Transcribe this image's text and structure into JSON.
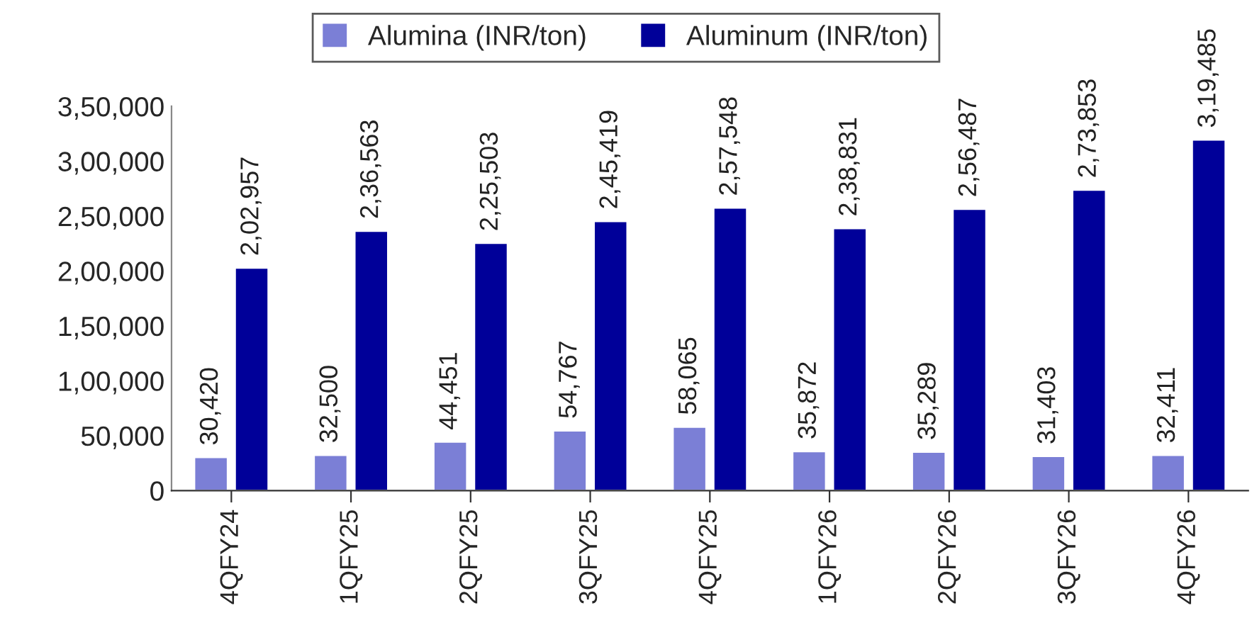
{
  "chart_data": {
    "type": "bar",
    "categories": [
      "4QFY24",
      "1QFY25",
      "2QFY25",
      "3QFY25",
      "4QFY25",
      "1QFY26",
      "2QFY26",
      "3QFY26",
      "4QFY26"
    ],
    "series": [
      {
        "name": "Alumina (INR/ton)",
        "color": "#7b7fd6",
        "values": [
          30420,
          32500,
          44451,
          54767,
          58065,
          35872,
          35289,
          31403,
          32411
        ],
        "value_labels": [
          "30,420",
          "32,500",
          "44,451",
          "54,767",
          "58,065",
          "35,872",
          "35,289",
          "31,403",
          "32,411"
        ]
      },
      {
        "name": "Aluminum (INR/ton)",
        "color": "#000099",
        "values": [
          202957,
          236563,
          225503,
          245419,
          257548,
          238831,
          256487,
          273853,
          319485
        ],
        "value_labels": [
          "2,02,957",
          "2,36,563",
          "2,25,503",
          "2,45,419",
          "2,57,548",
          "2,38,831",
          "2,56,487",
          "2,73,853",
          "3,19,485"
        ]
      }
    ],
    "ylim": [
      0,
      350000
    ],
    "yticks": [
      0,
      {
        "value": 50000,
        "label": "50,000"
      },
      {
        "value": 100000,
        "label": "1,00,000"
      },
      {
        "value": 150000,
        "label": "1,50,000"
      },
      {
        "value": 200000,
        "label": "2,00,000"
      },
      {
        "value": 250000,
        "label": "2,50,000"
      },
      {
        "value": 300000,
        "label": "3,00,000"
      },
      {
        "value": 350000,
        "label": "3,50,000"
      }
    ],
    "grid": false,
    "legend": "top"
  }
}
